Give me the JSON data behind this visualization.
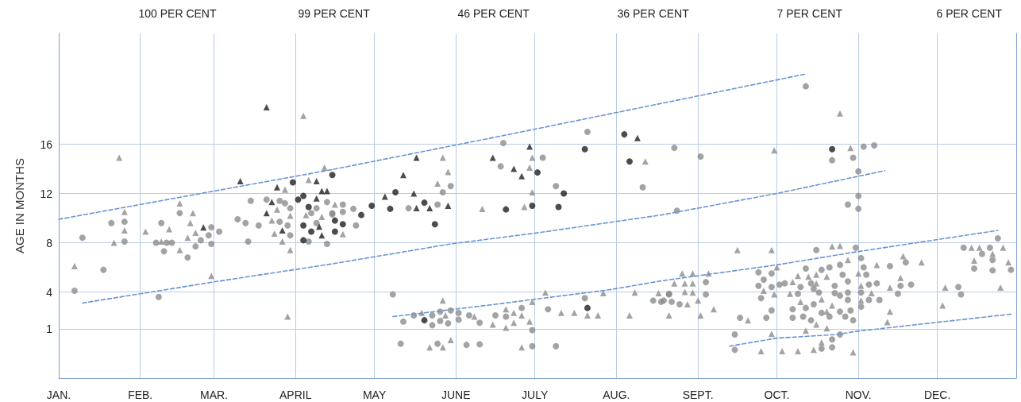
{
  "chart_data": {
    "type": "scatter",
    "ylabel": "AGE IN MONTHS",
    "xlim": [
      "--01-01",
      "--12-31"
    ],
    "xticks": [
      {
        "value": "--01-01",
        "label": "JAN."
      },
      {
        "value": "--02-01",
        "label": "FEB."
      },
      {
        "value": "--03-01",
        "label": "MAR."
      },
      {
        "value": "--04-01",
        "label": "APRIL"
      },
      {
        "value": "--05-01",
        "label": "MAY"
      },
      {
        "value": "--06-01",
        "label": "JUNE"
      },
      {
        "value": "--07-01",
        "label": "JULY"
      },
      {
        "value": "--08-01",
        "label": "AUG."
      },
      {
        "value": "--09-01",
        "label": "SEPT."
      },
      {
        "value": "--10-01",
        "label": "OCT."
      },
      {
        "value": "--11-01",
        "label": "NOV."
      },
      {
        "value": "--12-01",
        "label": "DEC."
      }
    ],
    "ylim": [
      -3,
      25
    ],
    "yticks": [
      1,
      4,
      8,
      12,
      16
    ],
    "grid": true,
    "annotations": [
      "100 PER CENT",
      "99 PER CENT",
      "46 PER CENT",
      "36 PER CENT",
      "7 PER CENT",
      "6 PER CENT"
    ],
    "series": [
      {
        "marker": "circle",
        "color": "#8c8c8c",
        "x": [
          "--01-21",
          "--01-26",
          "--02-09",
          "--01-10",
          "--01-26",
          "--02-07",
          "--02-11",
          "--02-10",
          "--01-18",
          "--01-07",
          "--02-08",
          "--02-16",
          "--02-28",
          "--03-03",
          "--02-27",
          "--02-13",
          "--02-24",
          "--02-28",
          "--02-22",
          "--02-19",
          "--03-15",
          "--03-10",
          "--03-13",
          "--03-18",
          "--03-14",
          "--03-21",
          "--03-26",
          "--03-28",
          "--03-30",
          "--04-07",
          "--04-09",
          "--04-13",
          "--03-26",
          "--03-29",
          "--04-09",
          "--04-15",
          "--03-30",
          "--04-06",
          "--04-13",
          "--04-19",
          "--04-23",
          "--04-19",
          "--04-15",
          "--04-24",
          "--05-14",
          "--05-25",
          "--05-27",
          "--05-30",
          "--06-18",
          "--06-19",
          "--07-04",
          "--07-09",
          "--07-21",
          "--08-11",
          "--05-08",
          "--05-12",
          "--05-16",
          "--05-23",
          "--05-26",
          "--05-30",
          "--06-02",
          "--05-23",
          "--05-26",
          "--05-29",
          "--06-02",
          "--06-06",
          "--06-10",
          "--06-16",
          "--05-11",
          "--05-25",
          "--06-05",
          "--06-10",
          "--07-20",
          "--08-21",
          "--08-15",
          "--08-18",
          "--06-26",
          "--06-20",
          "--07-06",
          "--06-30",
          "--06-30",
          "--07-09",
          "--08-23",
          "--09-02",
          "--08-24",
          "--10-22",
          "--10-16",
          "--09-04",
          "--08-21",
          "--09-04",
          "--08-19",
          "--08-22",
          "--08-25",
          "--09-24",
          "--09-29",
          "--09-26",
          "--09-24",
          "--09-29",
          "--10-02",
          "--10-04",
          "--09-25",
          "--10-09",
          "--10-10",
          "--10-12",
          "--10-14",
          "--09-29",
          "--09-17",
          "--09-27",
          "--10-07",
          "--10-07",
          "--10-11",
          "--10-12",
          "--10-14",
          "--09-15",
          "--09-15",
          "--10-18",
          "--10-22",
          "--10-15",
          "--10-18",
          "--10-21",
          "--10-17",
          "--10-23",
          "--10-15",
          "--10-18",
          "--10-21",
          "--10-22",
          "--10-23",
          "--11-03",
          "--11-07",
          "--10-30",
          "--11-01",
          "--11-01",
          "--10-28",
          "--11-01",
          "--10-12",
          "--10-31",
          "--11-02",
          "--10-25",
          "--11-03",
          "--11-13",
          "--11-19",
          "--10-26",
          "--11-04",
          "--10-28",
          "--11-05",
          "--11-08",
          "--11-17",
          "--11-21",
          "--10-28",
          "--11-02",
          "--11-16",
          "--10-25",
          "--10-28",
          "--11-05",
          "--11-09",
          "--11-02",
          "--10-29",
          "--10-25",
          "--10-27",
          "--10-30",
          "--10-25",
          "--12-09",
          "--12-10",
          "--12-11",
          "--12-21",
          "--12-24",
          "--12-18",
          "--12-22",
          "--12-15",
          "--12-22",
          "--12-29"
        ],
        "values": [
          9.6,
          9.7,
          9.6,
          8.4,
          8.1,
          8.0,
          8.0,
          7.3,
          5.8,
          4.1,
          3.6,
          10.4,
          9.25,
          8.9,
          8.6,
          8.0,
          8.2,
          7.9,
          7.7,
          6.8,
          11.4,
          9.9,
          9.6,
          9.4,
          8.1,
          11.5,
          11.4,
          11.2,
          10.8,
          10.4,
          10.8,
          11.3,
          9.7,
          9.4,
          9.6,
          10.4,
          8.6,
          8.1,
          7.9,
          11.1,
          10.75,
          10.5,
          10.3,
          9.4,
          10.8,
          11.1,
          12.1,
          12.6,
          14.2,
          16.1,
          14.9,
          12.6,
          17.0,
          12.5,
          3.8,
          1.6,
          2.1,
          2.1,
          2.4,
          2.5,
          2.3,
          1.3,
          1.65,
          1.45,
          1.75,
          2.1,
          1.5,
          2.1,
          -0.2,
          -0.2,
          -0.3,
          -0.25,
          3.5,
          3.85,
          3.3,
          3.2,
          2.7,
          2.0,
          2.6,
          0.9,
          -0.4,
          -0.4,
          15.7,
          15.0,
          10.6,
          14.7,
          7.4,
          4.8,
          3.8,
          3.8,
          3.3,
          3.2,
          3.0,
          5.6,
          5.5,
          5.0,
          4.5,
          4.4,
          4.6,
          4.7,
          3.5,
          3.85,
          4.4,
          5.9,
          4.7,
          2.5,
          1.9,
          1.9,
          2.6,
          1.9,
          2.0,
          2.7,
          1.7,
          0.55,
          -0.7,
          -0.6,
          -0.5,
          4.25,
          5.8,
          6.0,
          3.95,
          4.5,
          3.0,
          2.3,
          2.0,
          0.15,
          3.9,
          15.8,
          15.9,
          14.9,
          13.8,
          11.8,
          11.1,
          10.75,
          20.7,
          7.6,
          6.75,
          6.2,
          6.0,
          6.1,
          6.4,
          5.4,
          5.4,
          4.85,
          4.6,
          4.7,
          4.5,
          4.6,
          3.95,
          3.95,
          3.85,
          3.7,
          3.35,
          3.35,
          3.35,
          2.8,
          2.5,
          2.4,
          2.0,
          1.7,
          0.55,
          4.4,
          3.8,
          7.6,
          7.6,
          8.35,
          7.1,
          6.6,
          5.9,
          5.75,
          5.8
        ]
      },
      {
        "marker": "triangle",
        "color": "#8c8c8c",
        "x": [
          "--01-24",
          "--01-26",
          "--01-26",
          "--02-03",
          "--02-12",
          "--01-22",
          "--02-09",
          "--01-07",
          "--02-16",
          "--02-21",
          "--02-20",
          "--02-22",
          "--02-19",
          "--02-16",
          "--02-28",
          "--03-29",
          "--04-04",
          "--03-28",
          "--04-06",
          "--04-12",
          "--03-25",
          "--03-23",
          "--03-30",
          "--04-05",
          "--04-11",
          "--03-24",
          "--03-27",
          "--03-30",
          "--04-16",
          "--04-19",
          "--05-27",
          "--05-29",
          "--05-25",
          "--06-11",
          "--06-29",
          "--06-30",
          "--06-30",
          "--06-27",
          "--08-12",
          "--05-27",
          "--05-19",
          "--05-28",
          "--06-08",
          "--06-15",
          "--05-22",
          "--05-27",
          "--05-30",
          "--07-05",
          "--06-30",
          "--07-27",
          "--08-08",
          "--08-17",
          "--06-20",
          "--06-23",
          "--06-26",
          "--07-11",
          "--07-16",
          "--07-21",
          "--07-25",
          "--08-06",
          "--06-23",
          "--06-20",
          "--06-29",
          "--06-26",
          "--09-30",
          "--09-16",
          "--09-29",
          "--10-22",
          "--08-26",
          "--08-30",
          "--09-05",
          "--08-23",
          "--08-27",
          "--08-30",
          "--08-27",
          "--08-30",
          "--09-01",
          "--08-28",
          "--09-07",
          "--08-21",
          "--09-02",
          "--10-01",
          "--10-07",
          "--09-26",
          "--09-30",
          "--10-06",
          "--10-09",
          "--10-13",
          "--09-20",
          "--10-10",
          "--09-29",
          "--10-12",
          "--09-25",
          "--10-03",
          "--10-09",
          "--10-15",
          "--10-16",
          "--10-16",
          "--10-20",
          "--10-18",
          "--10-20",
          "--10-22",
          "--10-16",
          "--10-20",
          "--10-18",
          "--10-29",
          "--10-25",
          "--10-25",
          "--10-28",
          "--11-08",
          "--11-18",
          "--11-25",
          "--11-01",
          "--11-02",
          "--11-17",
          "--11-13",
          "--11-06",
          "--11-02",
          "--11-13",
          "--11-12",
          "--10-30",
          "--12-04",
          "--12-03",
          "--12-14",
          "--12-17",
          "--12-26",
          "--12-22",
          "--12-15",
          "--12-28",
          "--12-25"
        ],
        "values": [
          14.9,
          10.5,
          9.0,
          8.9,
          9.1,
          8.0,
          8.1,
          6.1,
          11.2,
          10.4,
          9.6,
          8.8,
          8.4,
          7.4,
          5.3,
          2.0,
          18.3,
          12.3,
          13.1,
          14.1,
          10.7,
          9.8,
          10.2,
          10.25,
          10.1,
          8.75,
          8.1,
          7.4,
          11.1,
          8.7,
          14.9,
          13.75,
          12.8,
          10.75,
          14.1,
          14.9,
          12.1,
          10.9,
          14.6,
          3.3,
          2.3,
          2.1,
          2.0,
          1.35,
          -0.5,
          -0.5,
          0.1,
          3.95,
          3.2,
          3.9,
          3.95,
          3.9,
          2.6,
          2.3,
          2.1,
          2.3,
          2.3,
          2.1,
          2.1,
          2.1,
          1.5,
          1.1,
          1.6,
          -0.5,
          15.5,
          7.4,
          7.4,
          7.7,
          5.5,
          5.5,
          5.5,
          4.7,
          4.7,
          4.7,
          4.0,
          3.95,
          3.3,
          3.0,
          2.6,
          2.1,
          2.1,
          6.0,
          4.8,
          4.1,
          3.8,
          3.85,
          5.3,
          5.25,
          1.7,
          3.2,
          0.6,
          0.85,
          -0.8,
          -0.8,
          -0.8,
          -0.7,
          4.7,
          5.4,
          5.25,
          3.4,
          2.4,
          2.9,
          1.35,
          1.05,
          -0.1,
          15.7,
          18.5,
          7.75,
          6.6,
          6.2,
          6.9,
          6.4,
          5.5,
          4.5,
          5.15,
          4.35,
          3.9,
          3.3,
          2.4,
          1.55,
          -0.9,
          4.35,
          2.9,
          7.6,
          7.6,
          7.6,
          7.1,
          6.55,
          6.4,
          4.35
        ]
      },
      {
        "marker": "circle",
        "color": "#1f1f1f",
        "x": [
          "--03-31",
          "--04-15",
          "--04-02",
          "--04-04",
          "--04-06",
          "--04-04",
          "--04-07",
          "--04-04",
          "--04-16",
          "--04-16",
          "--04-26",
          "--04-19",
          "--04-30",
          "--05-07",
          "--05-09",
          "--05-20",
          "--05-24",
          "--05-20",
          "--07-02",
          "--07-12",
          "--06-20",
          "--06-30",
          "--07-10",
          "--07-20",
          "--08-04",
          "--08-06",
          "--07-21",
          "--10-22"
        ],
        "values": [
          12.9,
          13.5,
          11.5,
          11.8,
          10.9,
          9.4,
          8.9,
          8.2,
          9.8,
          8.9,
          10.25,
          9.5,
          11.0,
          10.75,
          12.1,
          11.25,
          9.5,
          1.7,
          13.7,
          12.0,
          10.7,
          11.0,
          10.9,
          15.6,
          16.8,
          14.6,
          2.7,
          15.6
        ]
      },
      {
        "marker": "triangle",
        "color": "#1f1f1f",
        "x": [
          "--02-25",
          "--03-11",
          "--03-21",
          "--03-23",
          "--03-25",
          "--04-09",
          "--04-09",
          "--04-11",
          "--04-13",
          "--03-21",
          "--04-10",
          "--03-27",
          "--04-11",
          "--05-05",
          "--05-12",
          "--05-17",
          "--05-16",
          "--05-17",
          "--05-22",
          "--05-29",
          "--06-15",
          "--06-29",
          "--06-23",
          "--06-26",
          "--08-09"
        ],
        "values": [
          9.25,
          13.0,
          19.0,
          11.3,
          12.5,
          13.0,
          11.6,
          12.2,
          12.2,
          10.4,
          9.3,
          9.0,
          8.6,
          11.75,
          13.5,
          14.9,
          12.0,
          10.8,
          10.8,
          11.0,
          14.9,
          15.8,
          14.0,
          13.4,
          16.5
        ]
      },
      {
        "type": "line",
        "marker": "none",
        "line_style": "dashed",
        "color": "#6a95d4",
        "x": [
          "--01-01",
          "--04-14",
          "--06-19",
          "--10-12"
        ],
        "values": [
          9.9,
          13.9,
          16.7,
          21.7
        ]
      },
      {
        "type": "line",
        "marker": "none",
        "line_style": "dashed",
        "color": "#6a95d4",
        "x": [
          "--01-10",
          "--03-02",
          "--04-14",
          "--05-30",
          "--07-02",
          "--08-18",
          "--10-01",
          "--11-11"
        ],
        "values": [
          3.1,
          4.85,
          6.25,
          7.9,
          8.8,
          10.25,
          12.0,
          13.85
        ]
      },
      {
        "type": "line",
        "marker": "none",
        "line_style": "dashed",
        "color": "#6a95d4",
        "x": [
          "--05-08",
          "--06-16",
          "--07-30",
          "--08-18",
          "--10-01",
          "--10-31",
          "--12-24"
        ],
        "values": [
          2.0,
          3.0,
          4.2,
          4.9,
          6.2,
          7.25,
          9.0
        ]
      },
      {
        "type": "line",
        "marker": "none",
        "line_style": "dashed",
        "color": "#6a95d4",
        "x": [
          "--09-13",
          "--10-01",
          "--10-24",
          "--10-31",
          "--12-29"
        ],
        "values": [
          -0.4,
          0.25,
          0.55,
          0.8,
          2.2
        ]
      }
    ]
  }
}
